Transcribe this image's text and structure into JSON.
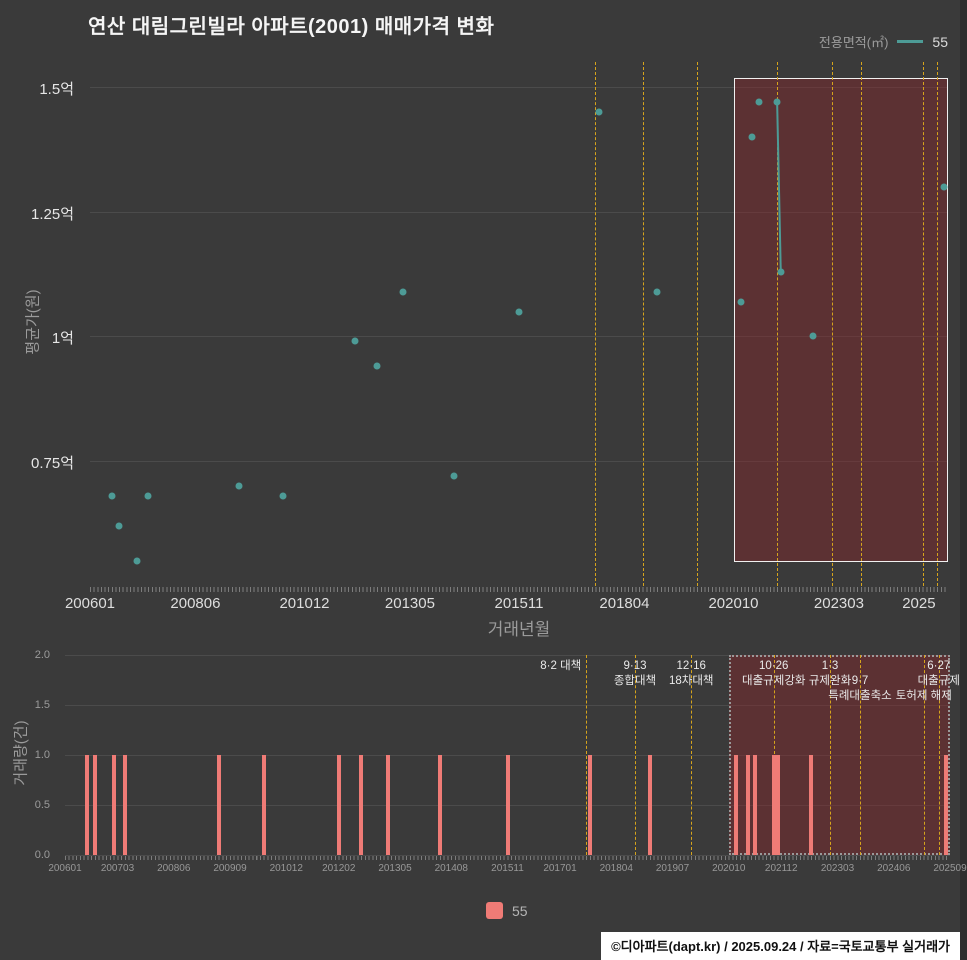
{
  "page": {
    "background": "#3a3a3a"
  },
  "header": {
    "title": "연산 대림그린빌라 아파트(2001) 매매가격 변화",
    "legend_label": "전용면적(㎡)",
    "legend_value": "55",
    "accent_color": "#4d9b96"
  },
  "bottom_legend": {
    "label": "55",
    "color": "#ef7b76"
  },
  "footer": {
    "credit": "©디아파트(dapt.kr) / 2025.09.24 / 자료=국토교통부 실거래가"
  },
  "policies": [
    {
      "date_month": "201708",
      "lines": [
        "8·2 대책"
      ],
      "align": "right"
    },
    {
      "date_month": "201809",
      "lines": [
        "9·13",
        "종합대책"
      ],
      "align": "center"
    },
    {
      "date_month": "201912",
      "lines": [
        "12·16",
        "18차대책"
      ],
      "align": "center"
    },
    {
      "date_month": "202110",
      "lines": [
        "10·26",
        "대출규제강화"
      ],
      "align": "center"
    },
    {
      "date_month": "202301",
      "lines": [
        "1·3",
        "규제완화"
      ],
      "align": "center"
    },
    {
      "date_month": "202309",
      "lines": [
        "",
        "9·7",
        "특례대출축소"
      ],
      "align": "center"
    },
    {
      "date_month": "202502",
      "lines": [
        "",
        "",
        "토허제 해제"
      ],
      "align": "center"
    },
    {
      "date_month": "202506",
      "lines": [
        "6·27",
        "대출규제"
      ],
      "align": "center"
    }
  ],
  "chart_data": [
    {
      "type": "scatter",
      "title": "연산 대림그린빌라 아파트(2001) 매매가격 변화",
      "xlabel": "거래년월",
      "ylabel": "평균가(원)",
      "ylim": [
        0.5,
        1.55
      ],
      "xlim_months": [
        0,
        236
      ],
      "grid": true,
      "yticks": [
        {
          "v": 1.5,
          "label": "1.5억"
        },
        {
          "v": 1.25,
          "label": "1.25억"
        },
        {
          "v": 1.0,
          "label": "1억"
        },
        {
          "v": 0.75,
          "label": "0.75억"
        }
      ],
      "xticks": [
        "200601",
        "200806",
        "201012",
        "201305",
        "201511",
        "201804",
        "202010",
        "202303",
        "2025"
      ],
      "highlight": {
        "from_month": "202010",
        "to_month": "202509",
        "style": "solid"
      },
      "series": [
        {
          "name": "55",
          "color": "#4d9b96",
          "points_ym_price_eok": [
            [
              "200607",
              0.68
            ],
            [
              "200609",
              0.62
            ],
            [
              "200702",
              0.55
            ],
            [
              "200705",
              0.68
            ],
            [
              "200906",
              0.7
            ],
            [
              "201006",
              0.68
            ],
            [
              "201202",
              0.99
            ],
            [
              "201208",
              0.94
            ],
            [
              "201303",
              1.09
            ],
            [
              "201405",
              0.72
            ],
            [
              "201511",
              1.05
            ],
            [
              "201709",
              1.45
            ],
            [
              "201901",
              1.09
            ],
            [
              "202012",
              1.07
            ],
            [
              "202103",
              1.4
            ],
            [
              "202105",
              1.47
            ],
            [
              "202110",
              1.47
            ],
            [
              "202111",
              1.13
            ],
            [
              "202208",
              1.0
            ],
            [
              "202508",
              1.3
            ]
          ]
        }
      ]
    },
    {
      "type": "bar",
      "xlabel": "",
      "ylabel": "거래량(건)",
      "ylim": [
        0,
        2
      ],
      "xlim_months": [
        0,
        236
      ],
      "grid": true,
      "yticks": [
        {
          "v": 2.0,
          "label": "2.0"
        },
        {
          "v": 1.5,
          "label": "1.5"
        },
        {
          "v": 1.0,
          "label": "1.0"
        },
        {
          "v": 0.5,
          "label": "0.5"
        },
        {
          "v": 0.0,
          "label": "0.0"
        }
      ],
      "xticks": [
        "200601",
        "200703",
        "200806",
        "200909",
        "201012",
        "201202",
        "201305",
        "201408",
        "201511",
        "201701",
        "201804",
        "201907",
        "202010",
        "202112",
        "202303",
        "202406",
        "202509"
      ],
      "highlight": {
        "from_month": "202010",
        "to_month": "202509",
        "style": "dotted"
      },
      "series": [
        {
          "name": "55",
          "color": "#ef7b76",
          "bars_ym_count": [
            [
              "200607",
              1
            ],
            [
              "200609",
              1
            ],
            [
              "200702",
              1
            ],
            [
              "200705",
              1
            ],
            [
              "200906",
              1
            ],
            [
              "201006",
              1
            ],
            [
              "201202",
              1
            ],
            [
              "201208",
              1
            ],
            [
              "201303",
              1
            ],
            [
              "201405",
              1
            ],
            [
              "201511",
              1
            ],
            [
              "201709",
              1
            ],
            [
              "201901",
              1
            ],
            [
              "202012",
              1
            ],
            [
              "202103",
              1
            ],
            [
              "202105",
              1
            ],
            [
              "202110",
              1
            ],
            [
              "202111",
              1
            ],
            [
              "202208",
              1
            ],
            [
              "202508",
              1
            ]
          ]
        }
      ]
    }
  ]
}
